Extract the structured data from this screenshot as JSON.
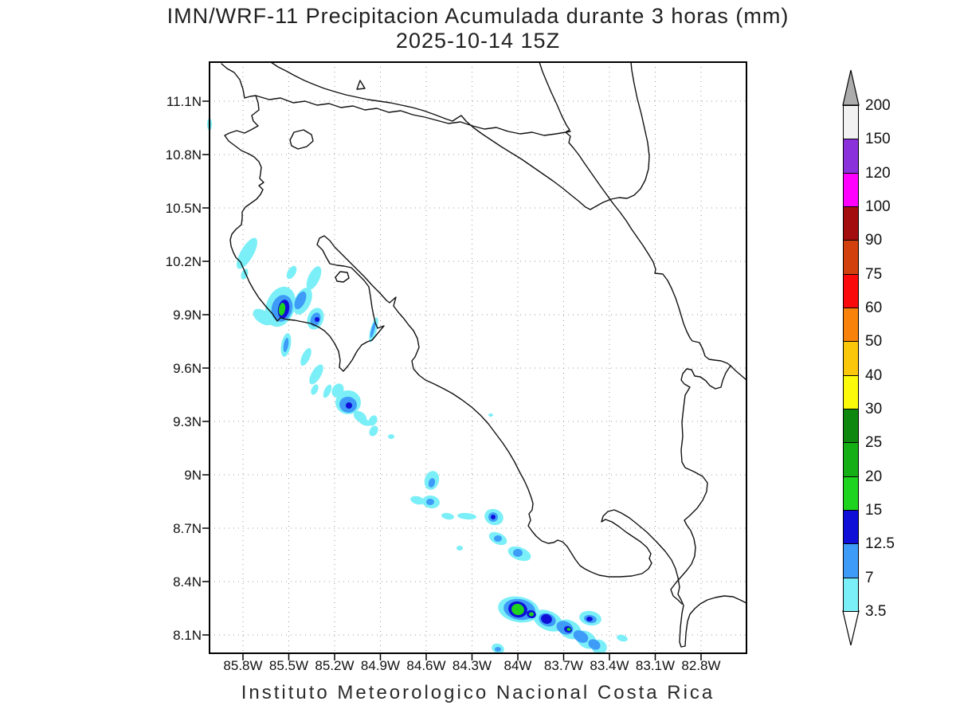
{
  "title": {
    "line1": "IMN/WRF-11 Precipitacion Acumulada durante 3 horas (mm)",
    "line2": "2025-10-14 15Z"
  },
  "caption": "Instituto Meteorologico Nacional Costa Rica",
  "axes": {
    "lat_labels": [
      "11.1N",
      "10.8N",
      "10.5N",
      "10.2N",
      "9.9N",
      "9.6N",
      "9.3N",
      "9N",
      "8.7N",
      "8.4N",
      "8.1N"
    ],
    "lon_labels": [
      "85.8W",
      "85.5W",
      "85.2W",
      "84.9W",
      "84.6W",
      "84.3W",
      "84W",
      "83.7W",
      "83.4W",
      "83.1W",
      "82.8W"
    ]
  },
  "colorbar": {
    "tick_labels": [
      "200",
      "150",
      "120",
      "100",
      "90",
      "75",
      "60",
      "50",
      "40",
      "30",
      "25",
      "20",
      "15",
      "12.5",
      "7",
      "3.5"
    ],
    "segment_colors_top_to_bottom": [
      "#F2F2F2",
      "#8B31DB",
      "#FF00FF",
      "#A30D0D",
      "#D2400E",
      "#FA0A0A",
      "#F8820A",
      "#FBC70A",
      "#FAFA0A",
      "#0E870E",
      "#14AF14",
      "#1FD41F",
      "#0F0FD8",
      "#3E9CF8",
      "#7BEFF7"
    ],
    "arrow_top_color": "#ACACAC",
    "arrow_bottom_color": "#FFFFFF"
  },
  "palette": {
    "shade_3_5mm": "#7BEFF7",
    "shade_7mm": "#3E9CF8",
    "shade_12_5mm": "#0F0FD8",
    "shade_15mm": "#1FD41F",
    "coast_line": "#111111",
    "grid_dots": "#999999"
  },
  "chart_data": {
    "type": "heatmap",
    "title": "IMN/WRF-11 Precipitacion Acumulada durante 3 horas (mm)",
    "subtitle": "2025-10-14 15Z",
    "region": "Costa Rica",
    "x_ticks": [
      "85.8W",
      "85.5W",
      "85.2W",
      "84.9W",
      "84.6W",
      "84.3W",
      "84W",
      "83.7W",
      "83.4W",
      "83.1W",
      "82.8W"
    ],
    "y_ticks": [
      "11.1N",
      "10.8N",
      "10.5N",
      "10.2N",
      "9.9N",
      "9.6N",
      "9.3N",
      "9N",
      "8.7N",
      "8.4N",
      "8.1N"
    ],
    "lon_range": [
      "86.0W",
      "82.5W"
    ],
    "lat_range": [
      "8.0N",
      "11.3N"
    ],
    "grid": "dotted",
    "legend_position": "right-vertical-colorbar",
    "colorbar_levels_mm": [
      3.5,
      7,
      12.5,
      15,
      20,
      25,
      30,
      40,
      50,
      60,
      75,
      90,
      100,
      120,
      150,
      200
    ],
    "colorbar_colors_low_to_high": [
      "#7BEFF7",
      "#3E9CF8",
      "#0F0FD8",
      "#1FD41F",
      "#14AF14",
      "#0E870E",
      "#FAFA0A",
      "#FBC70A",
      "#F8820A",
      "#FA0A0A",
      "#D2400E",
      "#A30D0D",
      "#FF00FF",
      "#8B31DB",
      "#F2F2F2"
    ],
    "precipitation_features": [
      {
        "location": "Nicoya Peninsula, ~85.5W 9.9N",
        "peak_range_mm": "15-20",
        "extent": "cluster with cyan/blue shells and green core"
      },
      {
        "location": "NW coast streaks, ~85.6-85.4W 10.1-10.3N",
        "peak_range_mm": "3.5-7",
        "extent": "thin diagonal streaks"
      },
      {
        "location": "Offshore Pacific, ~85.2W 9.4N",
        "peak_range_mm": "12.5-15",
        "extent": "small cluster with dark blue core"
      },
      {
        "location": "Coastal patches, ~84.7-84.3W 8.6-8.9N",
        "peak_range_mm": "7-12.5",
        "extent": "scattered small cells"
      },
      {
        "location": "Pacific band, ~84.1W-83.4W 8.3-8.05N",
        "peak_range_mm": "15-20",
        "extent": "elongated SE band, green cores near 84W 8.25N"
      }
    ]
  }
}
